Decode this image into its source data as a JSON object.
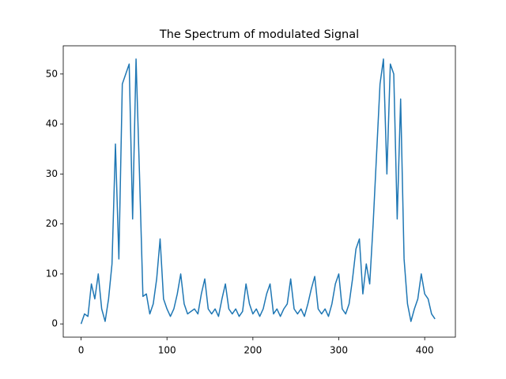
{
  "chart_data": {
    "type": "line",
    "title": "The Spectrum of modulated Signal",
    "x": [
      0,
      4,
      8,
      12,
      16,
      20,
      24,
      28,
      32,
      36,
      40,
      44,
      48,
      52,
      56,
      60,
      64,
      68,
      72,
      76,
      80,
      84,
      88,
      92,
      96,
      100,
      104,
      108,
      112,
      116,
      120,
      124,
      128,
      132,
      136,
      140,
      144,
      148,
      152,
      156,
      160,
      164,
      168,
      172,
      176,
      180,
      184,
      188,
      192,
      196,
      200,
      204,
      208,
      212,
      216,
      220,
      224,
      228,
      232,
      236,
      240,
      244,
      248,
      252,
      256,
      260,
      264,
      268,
      272,
      276,
      280,
      284,
      288,
      292,
      296,
      300,
      304,
      308,
      312,
      316,
      320,
      324,
      328,
      332,
      336,
      340,
      344,
      348,
      352,
      356,
      360,
      364,
      368,
      372,
      376,
      380,
      384,
      388,
      392,
      396,
      400,
      404,
      408,
      412
    ],
    "values": [
      0,
      2,
      1.5,
      8,
      5,
      10,
      3,
      0.5,
      5,
      12,
      36,
      13,
      48,
      50,
      52,
      21,
      53,
      30,
      5.5,
      6,
      2,
      4,
      9,
      17,
      5,
      3,
      1.5,
      3,
      6,
      10,
      4,
      2,
      2.5,
      3,
      2,
      6,
      9,
      3,
      2,
      3,
      1.5,
      5,
      8,
      3,
      2,
      3,
      1.5,
      2.5,
      8,
      4,
      2,
      3,
      1.5,
      3,
      6,
      8,
      2,
      3,
      1.5,
      3,
      4,
      9,
      3,
      2,
      3,
      1.5,
      4,
      7,
      9.5,
      3,
      2,
      3,
      1.5,
      4,
      8,
      10,
      3,
      2,
      4,
      9,
      15,
      17,
      6,
      12,
      8,
      20,
      34,
      48,
      53,
      30,
      52,
      50,
      21,
      45,
      13,
      4,
      0.5,
      3,
      5,
      10,
      6,
      5,
      2,
      1
    ],
    "color": "#1f77b4",
    "xlim": [
      -20.75,
      435.75
    ],
    "xticks": [
      0,
      100,
      200,
      300,
      400
    ],
    "ylim": [
      -2.65,
      55.65
    ],
    "yticks": [
      0,
      10,
      20,
      30,
      40,
      50
    ]
  }
}
